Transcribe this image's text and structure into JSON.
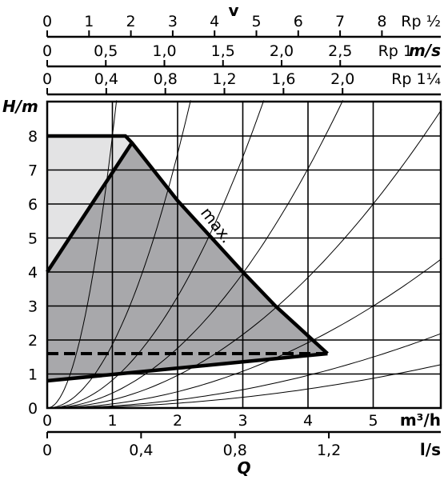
{
  "chart_data": {
    "type": "line",
    "title": "",
    "ylabel": "H/m",
    "xlabel": "Q",
    "ylim": [
      0,
      9
    ],
    "grid": true,
    "y_ticks": [
      "0",
      "1",
      "2",
      "3",
      "4",
      "5",
      "6",
      "7",
      "8"
    ],
    "x_bottom_axes": [
      {
        "unit": "m³/h",
        "ticks": [
          "0",
          "1",
          "2",
          "3",
          "4",
          "5"
        ],
        "range": [
          0,
          6
        ]
      },
      {
        "unit": "l/s",
        "ticks": [
          "0",
          "0,4",
          "0,8",
          "1,2"
        ],
        "values": [
          0,
          0.4,
          0.8,
          1.2
        ]
      }
    ],
    "velocity_symbol": "v",
    "velocity_unit": "m/s",
    "velocity_axes": [
      {
        "pipe": "Rp ½",
        "ticks": [
          "0",
          "1",
          "2",
          "3",
          "4",
          "5",
          "6",
          "7",
          "8"
        ],
        "values": [
          0,
          1,
          2,
          3,
          4,
          5,
          6,
          7,
          8
        ]
      },
      {
        "pipe": "Rp 1",
        "ticks": [
          "0",
          "0,5",
          "1,0",
          "1,5",
          "2,0",
          "2,5"
        ],
        "values": [
          0,
          0.5,
          1.0,
          1.5,
          2.0,
          2.5
        ]
      },
      {
        "pipe": "Rp 1¼",
        "ticks": [
          "0",
          "0,4",
          "0,8",
          "1,2",
          "1,6",
          "2,0"
        ],
        "values": [
          0,
          0.4,
          0.8,
          1.2,
          1.6,
          2.0
        ]
      }
    ],
    "annotation": "max.",
    "operating_field": [
      [
        0,
        8
      ],
      [
        1.2,
        8
      ],
      [
        1.3,
        7.8
      ],
      [
        2.0,
        6.1
      ],
      [
        3.0,
        4.0
      ],
      [
        3.5,
        3.0
      ],
      [
        4.3,
        1.6
      ],
      [
        0,
        0.8
      ]
    ],
    "max_curve": [
      [
        0,
        8
      ],
      [
        1.2,
        8
      ],
      [
        1.3,
        7.8
      ],
      [
        2.0,
        6.1
      ],
      [
        3.0,
        4.0
      ],
      [
        3.5,
        3.0
      ],
      [
        4.3,
        1.6
      ]
    ],
    "min_curve": [
      [
        0,
        4
      ],
      [
        1.3,
        7.8
      ]
    ],
    "min_line": [
      [
        0,
        0.8
      ],
      [
        4.3,
        1.6
      ]
    ],
    "setpoint_dashed": [
      [
        0,
        1.6
      ],
      [
        4.3,
        1.6
      ]
    ],
    "system_curve_factors": [
      8.0,
      1.87,
      0.82,
      0.44,
      0.24,
      0.12,
      0.06,
      0.035
    ]
  }
}
